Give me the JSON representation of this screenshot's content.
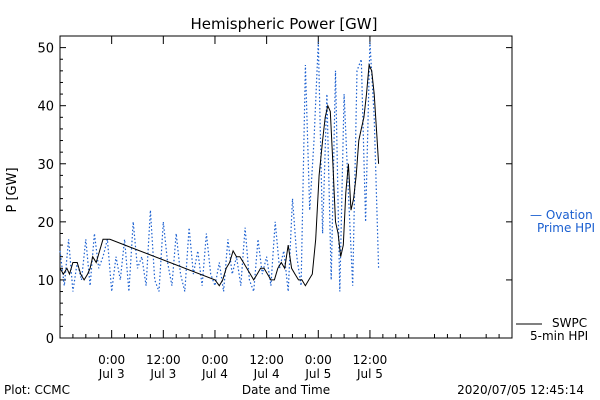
{
  "footer": {
    "plot_label": "Plot: CCMC",
    "timestamp": "2020/07/05 12:45:14"
  },
  "chart_data": {
    "type": "line",
    "title": "Hemispheric Power [GW]",
    "xlabel": "Date and Time",
    "ylabel": "P [GW]",
    "xlim": [
      0,
      105
    ],
    "ylim": [
      0,
      52
    ],
    "x_unit": "hours since Jul 2 12:00",
    "y_ticks": [
      0,
      10,
      20,
      30,
      40,
      50
    ],
    "x_ticks": [
      {
        "x": 12,
        "top": "0:00",
        "bottom": "Jul 3"
      },
      {
        "x": 24,
        "top": "12:00",
        "bottom": "Jul 3"
      },
      {
        "x": 36,
        "top": "0:00",
        "bottom": "Jul 4"
      },
      {
        "x": 48,
        "top": "12:00",
        "bottom": "Jul 4"
      },
      {
        "x": 60,
        "top": "0:00",
        "bottom": "Jul 5"
      },
      {
        "x": 72,
        "top": "12:00",
        "bottom": "Jul 5"
      }
    ],
    "grid": false,
    "legend": [
      {
        "label_line1": "— Ovation",
        "label_line2": "Prime HPI",
        "color": "#1a5fd0",
        "style": "dotted"
      },
      {
        "label_line1": "SWPC",
        "label_line2": "5-min HPI",
        "color": "#000000",
        "style": "solid"
      }
    ],
    "series": [
      {
        "name": "Ovation Prime HPI",
        "color": "#1a5fd0",
        "style": "dotted",
        "x": [
          0,
          1,
          2,
          3,
          4,
          5,
          6,
          7,
          8,
          9,
          10,
          11,
          12,
          13,
          14,
          15,
          16,
          17,
          18,
          19,
          20,
          21,
          22,
          23,
          24,
          25,
          26,
          27,
          28,
          29,
          30,
          31,
          32,
          33,
          34,
          35,
          36,
          37,
          38,
          39,
          40,
          41,
          42,
          43,
          44,
          45,
          46,
          47,
          48,
          49,
          50,
          51,
          52,
          53,
          54,
          55,
          56,
          57,
          58,
          59,
          60,
          61,
          62,
          63,
          64,
          65,
          66,
          67,
          68,
          69,
          70,
          71,
          72,
          73,
          74
        ],
        "values": [
          15,
          9,
          17,
          8,
          13,
          10,
          17,
          9,
          18,
          12,
          14,
          17,
          8,
          14,
          10,
          17,
          8,
          20,
          12,
          14,
          9,
          22,
          10,
          8,
          20,
          13,
          9,
          18,
          11,
          8,
          19,
          11,
          15,
          9,
          18,
          11,
          9,
          13,
          8,
          17,
          11,
          14,
          9,
          19,
          10,
          8,
          17,
          11,
          14,
          9,
          20,
          12,
          15,
          8,
          24,
          14,
          9,
          47,
          22,
          34,
          51,
          18,
          42,
          10,
          46,
          8,
          42,
          25,
          9,
          46,
          48,
          20,
          51,
          38,
          12
        ]
      },
      {
        "name": "SWPC 5-min HPI",
        "color": "#000000",
        "style": "solid",
        "x": [
          0,
          0.8,
          1.6,
          2.2,
          3,
          4,
          4.8,
          5.6,
          6.4,
          7,
          7.6,
          8.4,
          9.2,
          10,
          10.8,
          11.6,
          36,
          37,
          37.8,
          38.6,
          39.4,
          40.2,
          41,
          41.8,
          42.6,
          43.4,
          44.2,
          45,
          45.8,
          46.6,
          47.4,
          48.2,
          49,
          49.8,
          50.6,
          51.4,
          52.2,
          53,
          53.8,
          54.6,
          55.4,
          56.2,
          57,
          57.8,
          58.6,
          59.4,
          60.2,
          61,
          61.6,
          62.2,
          62.8,
          63.4,
          64,
          64.6,
          65.2,
          65.8,
          66.4,
          67,
          67.6,
          68.2,
          68.8,
          69.4,
          70,
          70.6,
          71.2,
          71.8,
          72.4,
          73,
          73.6,
          74
        ],
        "values": [
          12,
          11,
          12,
          11,
          13,
          13,
          11,
          10,
          11,
          12,
          14,
          13,
          15,
          17,
          17,
          17,
          10,
          9,
          10,
          12,
          13,
          15,
          14,
          14,
          13,
          12,
          11,
          10,
          11,
          12,
          12,
          11,
          10,
          10,
          12,
          13,
          12,
          16,
          12,
          11,
          10,
          10,
          9,
          10,
          11,
          17,
          28,
          34,
          38,
          40,
          39,
          30,
          20,
          18,
          14,
          16,
          25,
          30,
          22,
          24,
          28,
          34,
          36,
          38,
          42,
          47,
          46,
          42,
          35,
          30
        ]
      }
    ]
  }
}
